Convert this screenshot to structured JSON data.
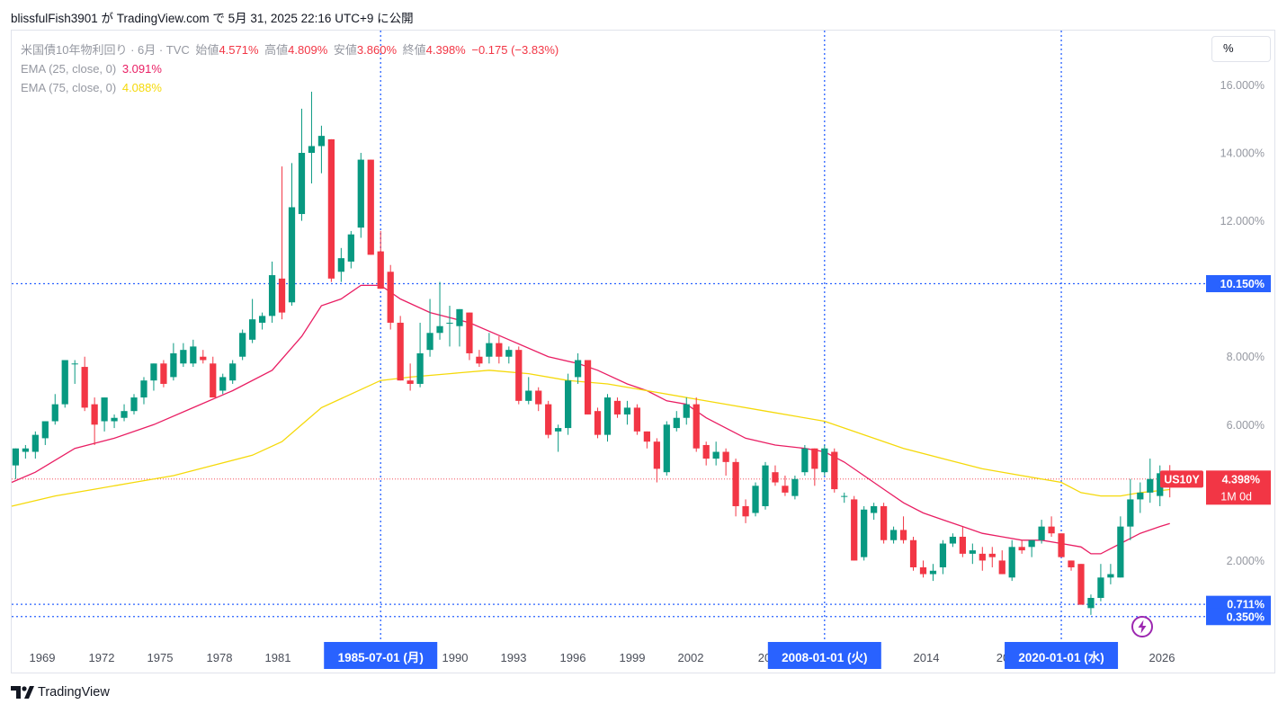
{
  "caption": "blissfulFish3901 が TradingView.com で 5月 31, 2025 22:16 UTC+9 に公開",
  "legend": {
    "symbol": "米国債10年物利回り · 6月 · TVC",
    "open_label": "始値",
    "open": "4.571%",
    "high_label": "高値",
    "high": "4.809%",
    "low_label": "安値",
    "low": "3.860%",
    "close_label": "終値",
    "close": "4.398%",
    "change": "−0.175 (−3.83%)",
    "ema25_label": "EMA (25, close, 0)",
    "ema25_value": "3.091%",
    "ema75_label": "EMA (75, close, 0)",
    "ema75_value": "4.088%"
  },
  "scale_button": "%",
  "brand": "TradingView",
  "colors": {
    "up": "#089981",
    "down": "#f23645",
    "ema25": "#e91e63",
    "ema75": "#f5d90a",
    "marker": "#2962ff"
  },
  "chart_data": {
    "type": "candlestick",
    "y_axis_labels": [
      "16.000%",
      "14.000%",
      "12.000%",
      "8.000%",
      "6.000%",
      "2.000%"
    ],
    "ylim": [
      -0.45,
      17.6
    ],
    "x_axis_labels": [
      "1969",
      "1972",
      "1975",
      "1978",
      "1981",
      "1990",
      "1993",
      "1996",
      "1999",
      "2002",
      "20",
      "11",
      "2014",
      "20",
      "23",
      "2026"
    ],
    "time_range": [
      1966.8,
      2027.2
    ],
    "horizontal_lines": [
      {
        "value": 10.15,
        "label": "10.150%"
      },
      {
        "value": 0.711,
        "label": "0.711%"
      },
      {
        "value": 0.35,
        "label": "0.350%"
      }
    ],
    "vertical_markers": [
      {
        "time": 1985.5,
        "label": "1985-07-01 (月)"
      },
      {
        "time": 2008.0,
        "label": "2008-01-01 (火)"
      },
      {
        "time": 2020.0,
        "label": "2020-01-01 (水)"
      }
    ],
    "current_price": {
      "symbol": "US10Y",
      "value": 4.398,
      "label": "4.398%",
      "interval": "1M 0d"
    },
    "candles": [
      {
        "t": 1967.0,
        "o": 4.8,
        "h": 5.3,
        "l": 4.4,
        "c": 5.3
      },
      {
        "t": 1967.5,
        "o": 5.2,
        "h": 5.4,
        "l": 5.0,
        "c": 5.3
      },
      {
        "t": 1968.0,
        "o": 5.2,
        "h": 5.8,
        "l": 5.0,
        "c": 5.7
      },
      {
        "t": 1968.5,
        "o": 5.6,
        "h": 6.1,
        "l": 5.4,
        "c": 6.1
      },
      {
        "t": 1969.0,
        "o": 6.1,
        "h": 6.9,
        "l": 6.0,
        "c": 6.6
      },
      {
        "t": 1969.5,
        "o": 6.6,
        "h": 7.9,
        "l": 6.5,
        "c": 7.9
      },
      {
        "t": 1970.0,
        "o": 7.8,
        "h": 7.9,
        "l": 7.2,
        "c": 7.8
      },
      {
        "t": 1970.5,
        "o": 7.7,
        "h": 8.0,
        "l": 6.4,
        "c": 6.5
      },
      {
        "t": 1971.0,
        "o": 6.6,
        "h": 6.8,
        "l": 5.4,
        "c": 6.0
      },
      {
        "t": 1971.5,
        "o": 6.1,
        "h": 6.8,
        "l": 5.8,
        "c": 6.8
      },
      {
        "t": 1972.0,
        "o": 6.1,
        "h": 6.3,
        "l": 5.9,
        "c": 6.2
      },
      {
        "t": 1972.5,
        "o": 6.2,
        "h": 6.6,
        "l": 6.1,
        "c": 6.4
      },
      {
        "t": 1973.0,
        "o": 6.4,
        "h": 6.9,
        "l": 6.3,
        "c": 6.8
      },
      {
        "t": 1973.5,
        "o": 6.8,
        "h": 7.4,
        "l": 6.6,
        "c": 7.3
      },
      {
        "t": 1974.0,
        "o": 7.3,
        "h": 7.8,
        "l": 7.0,
        "c": 7.8
      },
      {
        "t": 1974.5,
        "o": 7.8,
        "h": 7.9,
        "l": 7.1,
        "c": 7.2
      },
      {
        "t": 1975.0,
        "o": 7.4,
        "h": 8.4,
        "l": 7.3,
        "c": 8.1
      },
      {
        "t": 1975.5,
        "o": 7.8,
        "h": 8.4,
        "l": 7.7,
        "c": 8.2
      },
      {
        "t": 1976.0,
        "o": 7.8,
        "h": 8.5,
        "l": 7.7,
        "c": 8.3
      },
      {
        "t": 1976.5,
        "o": 8.0,
        "h": 8.2,
        "l": 7.8,
        "c": 7.9
      },
      {
        "t": 1977.0,
        "o": 7.8,
        "h": 8.0,
        "l": 6.8,
        "c": 6.8
      },
      {
        "t": 1977.5,
        "o": 7.0,
        "h": 7.5,
        "l": 6.9,
        "c": 7.4
      },
      {
        "t": 1978.0,
        "o": 7.3,
        "h": 7.9,
        "l": 7.2,
        "c": 7.8
      },
      {
        "t": 1978.5,
        "o": 8.0,
        "h": 8.8,
        "l": 7.9,
        "c": 8.7
      },
      {
        "t": 1979.0,
        "o": 8.5,
        "h": 9.7,
        "l": 8.4,
        "c": 9.1
      },
      {
        "t": 1979.5,
        "o": 9.0,
        "h": 9.3,
        "l": 8.8,
        "c": 9.2
      },
      {
        "t": 1980.0,
        "o": 9.2,
        "h": 10.8,
        "l": 9.0,
        "c": 10.4
      },
      {
        "t": 1980.5,
        "o": 10.3,
        "h": 13.6,
        "l": 9.1,
        "c": 9.3
      },
      {
        "t": 1981.0,
        "o": 9.6,
        "h": 13.7,
        "l": 9.5,
        "c": 12.4
      },
      {
        "t": 1981.5,
        "o": 12.2,
        "h": 15.3,
        "l": 12.0,
        "c": 14.0
      },
      {
        "t": 1982.0,
        "o": 14.0,
        "h": 15.8,
        "l": 13.1,
        "c": 14.2
      },
      {
        "t": 1982.5,
        "o": 14.2,
        "h": 14.8,
        "l": 13.4,
        "c": 14.5
      },
      {
        "t": 1983.0,
        "o": 14.4,
        "h": 14.4,
        "l": 10.2,
        "c": 10.3
      },
      {
        "t": 1983.5,
        "o": 10.5,
        "h": 11.2,
        "l": 10.2,
        "c": 10.9
      },
      {
        "t": 1984.0,
        "o": 10.8,
        "h": 11.7,
        "l": 10.6,
        "c": 11.6
      },
      {
        "t": 1984.5,
        "o": 11.8,
        "h": 14.0,
        "l": 11.5,
        "c": 13.8
      },
      {
        "t": 1985.0,
        "o": 13.8,
        "h": 13.8,
        "l": 11.0,
        "c": 11.0
      },
      {
        "t": 1985.5,
        "o": 11.1,
        "h": 11.7,
        "l": 10.0,
        "c": 10.0
      },
      {
        "t": 1986.0,
        "o": 10.5,
        "h": 10.7,
        "l": 8.8,
        "c": 9.0
      },
      {
        "t": 1986.5,
        "o": 9.0,
        "h": 9.2,
        "l": 7.3,
        "c": 7.3
      },
      {
        "t": 1987.0,
        "o": 7.3,
        "h": 7.8,
        "l": 7.0,
        "c": 7.2
      },
      {
        "t": 1987.5,
        "o": 7.2,
        "h": 9.0,
        "l": 7.1,
        "c": 8.1
      },
      {
        "t": 1988.0,
        "o": 8.2,
        "h": 9.7,
        "l": 8.0,
        "c": 8.7
      },
      {
        "t": 1988.5,
        "o": 8.7,
        "h": 10.2,
        "l": 8.5,
        "c": 8.9
      },
      {
        "t": 1989.0,
        "o": 9.0,
        "h": 9.5,
        "l": 8.3,
        "c": 9.0
      },
      {
        "t": 1989.5,
        "o": 8.9,
        "h": 9.4,
        "l": 8.3,
        "c": 9.4
      },
      {
        "t": 1990.0,
        "o": 9.3,
        "h": 9.3,
        "l": 7.9,
        "c": 8.1
      },
      {
        "t": 1990.5,
        "o": 8.0,
        "h": 8.2,
        "l": 7.7,
        "c": 7.8
      },
      {
        "t": 1991.0,
        "o": 8.0,
        "h": 8.7,
        "l": 7.8,
        "c": 8.4
      },
      {
        "t": 1991.5,
        "o": 8.4,
        "h": 8.6,
        "l": 7.8,
        "c": 8.0
      },
      {
        "t": 1992.0,
        "o": 8.0,
        "h": 8.3,
        "l": 7.8,
        "c": 8.2
      },
      {
        "t": 1992.5,
        "o": 8.2,
        "h": 8.3,
        "l": 6.6,
        "c": 6.7
      },
      {
        "t": 1993.0,
        "o": 6.7,
        "h": 7.4,
        "l": 6.6,
        "c": 7.0
      },
      {
        "t": 1993.5,
        "o": 7.0,
        "h": 7.1,
        "l": 6.4,
        "c": 6.6
      },
      {
        "t": 1994.0,
        "o": 6.6,
        "h": 6.7,
        "l": 5.6,
        "c": 5.7
      },
      {
        "t": 1994.5,
        "o": 5.8,
        "h": 6.0,
        "l": 5.2,
        "c": 5.9
      },
      {
        "t": 1995.0,
        "o": 5.9,
        "h": 7.5,
        "l": 5.7,
        "c": 7.3
      },
      {
        "t": 1995.5,
        "o": 7.4,
        "h": 8.1,
        "l": 7.2,
        "c": 7.9
      },
      {
        "t": 1996.0,
        "o": 7.9,
        "h": 7.9,
        "l": 6.3,
        "c": 6.3
      },
      {
        "t": 1996.5,
        "o": 6.4,
        "h": 6.5,
        "l": 5.6,
        "c": 5.7
      },
      {
        "t": 1997.0,
        "o": 5.7,
        "h": 6.9,
        "l": 5.5,
        "c": 6.8
      },
      {
        "t": 1997.5,
        "o": 6.7,
        "h": 6.8,
        "l": 6.2,
        "c": 6.3
      },
      {
        "t": 1998.0,
        "o": 6.3,
        "h": 6.7,
        "l": 6.0,
        "c": 6.5
      },
      {
        "t": 1998.5,
        "o": 6.5,
        "h": 6.6,
        "l": 5.7,
        "c": 5.8
      },
      {
        "t": 1999.0,
        "o": 5.8,
        "h": 5.8,
        "l": 5.3,
        "c": 5.5
      },
      {
        "t": 1999.5,
        "o": 5.5,
        "h": 5.6,
        "l": 4.3,
        "c": 4.7
      },
      {
        "t": 2000.0,
        "o": 4.6,
        "h": 6.1,
        "l": 4.5,
        "c": 6.0
      },
      {
        "t": 2000.5,
        "o": 5.9,
        "h": 6.4,
        "l": 5.8,
        "c": 6.2
      },
      {
        "t": 2001.0,
        "o": 6.2,
        "h": 6.8,
        "l": 6.0,
        "c": 6.6
      },
      {
        "t": 2001.5,
        "o": 6.6,
        "h": 6.8,
        "l": 5.2,
        "c": 5.3
      },
      {
        "t": 2002.0,
        "o": 5.4,
        "h": 5.5,
        "l": 4.8,
        "c": 5.0
      },
      {
        "t": 2002.5,
        "o": 5.0,
        "h": 5.5,
        "l": 4.8,
        "c": 5.2
      },
      {
        "t": 2003.0,
        "o": 5.2,
        "h": 5.3,
        "l": 4.5,
        "c": 4.9
      },
      {
        "t": 2003.5,
        "o": 4.9,
        "h": 5.0,
        "l": 3.3,
        "c": 3.6
      },
      {
        "t": 2004.0,
        "o": 3.6,
        "h": 3.8,
        "l": 3.1,
        "c": 3.3
      },
      {
        "t": 2004.5,
        "o": 3.4,
        "h": 4.3,
        "l": 3.3,
        "c": 4.2
      },
      {
        "t": 2005.0,
        "o": 3.6,
        "h": 4.9,
        "l": 3.5,
        "c": 4.8
      },
      {
        "t": 2005.5,
        "o": 4.6,
        "h": 4.8,
        "l": 4.2,
        "c": 4.3
      },
      {
        "t": 2006.0,
        "o": 4.2,
        "h": 4.5,
        "l": 3.9,
        "c": 4.0
      },
      {
        "t": 2006.5,
        "o": 3.9,
        "h": 4.5,
        "l": 3.8,
        "c": 4.4
      },
      {
        "t": 2007.0,
        "o": 4.6,
        "h": 5.4,
        "l": 4.5,
        "c": 5.3
      },
      {
        "t": 2007.5,
        "o": 5.3,
        "h": 5.3,
        "l": 4.2,
        "c": 4.7
      },
      {
        "t": 2008.0,
        "o": 4.6,
        "h": 5.4,
        "l": 4.5,
        "c": 5.3
      },
      {
        "t": 2008.5,
        "o": 5.2,
        "h": 5.3,
        "l": 4.0,
        "c": 4.1
      },
      {
        "t": 2009.0,
        "o": 3.9,
        "h": 4.0,
        "l": 3.7,
        "c": 3.9
      },
      {
        "t": 2009.5,
        "o": 3.8,
        "h": 3.9,
        "l": 2.0,
        "c": 2.0
      },
      {
        "t": 2010.0,
        "o": 2.1,
        "h": 3.6,
        "l": 2.0,
        "c": 3.5
      },
      {
        "t": 2010.5,
        "o": 3.4,
        "h": 3.7,
        "l": 3.2,
        "c": 3.6
      },
      {
        "t": 2011.0,
        "o": 3.6,
        "h": 3.7,
        "l": 2.5,
        "c": 2.6
      },
      {
        "t": 2011.5,
        "o": 2.6,
        "h": 3.0,
        "l": 2.5,
        "c": 2.9
      },
      {
        "t": 2012.0,
        "o": 2.9,
        "h": 3.3,
        "l": 2.5,
        "c": 2.6
      },
      {
        "t": 2012.5,
        "o": 2.6,
        "h": 2.7,
        "l": 1.7,
        "c": 1.8
      },
      {
        "t": 2013.0,
        "o": 1.8,
        "h": 2.0,
        "l": 1.5,
        "c": 1.6
      },
      {
        "t": 2013.5,
        "o": 1.6,
        "h": 1.9,
        "l": 1.4,
        "c": 1.7
      },
      {
        "t": 2014.0,
        "o": 1.8,
        "h": 2.6,
        "l": 1.6,
        "c": 2.5
      },
      {
        "t": 2014.5,
        "o": 2.5,
        "h": 2.8,
        "l": 2.4,
        "c": 2.7
      },
      {
        "t": 2015.0,
        "o": 2.7,
        "h": 3.0,
        "l": 2.1,
        "c": 2.2
      },
      {
        "t": 2015.5,
        "o": 2.2,
        "h": 2.5,
        "l": 1.9,
        "c": 2.3
      },
      {
        "t": 2016.0,
        "o": 2.2,
        "h": 2.4,
        "l": 1.7,
        "c": 2.0
      },
      {
        "t": 2016.5,
        "o": 2.2,
        "h": 2.4,
        "l": 1.8,
        "c": 2.1
      },
      {
        "t": 2017.0,
        "o": 2.0,
        "h": 2.3,
        "l": 1.6,
        "c": 1.6
      },
      {
        "t": 2017.5,
        "o": 1.5,
        "h": 2.6,
        "l": 1.4,
        "c": 2.4
      },
      {
        "t": 2018.0,
        "o": 2.4,
        "h": 2.6,
        "l": 2.2,
        "c": 2.3
      },
      {
        "t": 2018.5,
        "o": 2.4,
        "h": 2.6,
        "l": 2.1,
        "c": 2.6
      },
      {
        "t": 2019.0,
        "o": 2.6,
        "h": 3.2,
        "l": 2.5,
        "c": 3.0
      },
      {
        "t": 2019.5,
        "o": 3.0,
        "h": 3.3,
        "l": 2.7,
        "c": 2.8
      },
      {
        "t": 2020.0,
        "o": 2.8,
        "h": 2.8,
        "l": 2.1,
        "c": 2.1
      },
      {
        "t": 2020.5,
        "o": 2.0,
        "h": 2.0,
        "l": 1.7,
        "c": 1.8
      },
      {
        "t": 2021.0,
        "o": 1.9,
        "h": 1.9,
        "l": 0.7,
        "c": 0.7
      },
      {
        "t": 2021.5,
        "o": 0.6,
        "h": 1.0,
        "l": 0.4,
        "c": 0.9
      },
      {
        "t": 2022.0,
        "o": 0.9,
        "h": 1.9,
        "l": 0.8,
        "c": 1.5
      },
      {
        "t": 2022.5,
        "o": 1.5,
        "h": 1.9,
        "l": 1.3,
        "c": 1.6
      },
      {
        "t": 2023.0,
        "o": 1.5,
        "h": 3.3,
        "l": 1.5,
        "c": 3.0
      },
      {
        "t": 2023.5,
        "o": 3.0,
        "h": 4.4,
        "l": 2.6,
        "c": 3.8
      },
      {
        "t": 2024.0,
        "o": 3.8,
        "h": 4.3,
        "l": 3.4,
        "c": 4.0
      },
      {
        "t": 2024.5,
        "o": 4.0,
        "h": 5.0,
        "l": 3.7,
        "c": 4.4
      },
      {
        "t": 2025.0,
        "o": 3.9,
        "h": 4.8,
        "l": 3.6,
        "c": 4.57
      },
      {
        "t": 2025.5,
        "o": 4.571,
        "h": 4.809,
        "l": 3.86,
        "c": 4.398
      }
    ],
    "ema_lines": [
      {
        "name": "EMA (25, close, 0)",
        "color": "#e91e63",
        "points": [
          [
            1966.8,
            4.3
          ],
          [
            1968,
            4.6
          ],
          [
            1970,
            5.3
          ],
          [
            1972,
            5.6
          ],
          [
            1974,
            6.0
          ],
          [
            1976,
            6.5
          ],
          [
            1978,
            7.0
          ],
          [
            1980,
            7.6
          ],
          [
            1981.5,
            8.6
          ],
          [
            1982.5,
            9.5
          ],
          [
            1983.5,
            9.7
          ],
          [
            1984.5,
            10.1
          ],
          [
            1985.5,
            10.1
          ],
          [
            1986.5,
            9.7
          ],
          [
            1988,
            9.3
          ],
          [
            1990,
            9.0
          ],
          [
            1992,
            8.5
          ],
          [
            1994,
            8.0
          ],
          [
            1995.5,
            7.8
          ],
          [
            1996.5,
            7.6
          ],
          [
            1998,
            7.2
          ],
          [
            1999,
            7.0
          ],
          [
            2000,
            6.7
          ],
          [
            2001,
            6.6
          ],
          [
            2002,
            6.2
          ],
          [
            2003,
            5.9
          ],
          [
            2004,
            5.6
          ],
          [
            2005.5,
            5.4
          ],
          [
            2007,
            5.3
          ],
          [
            2008,
            5.2
          ],
          [
            2009,
            4.9
          ],
          [
            2010,
            4.5
          ],
          [
            2011,
            4.1
          ],
          [
            2012,
            3.7
          ],
          [
            2013,
            3.4
          ],
          [
            2014,
            3.2
          ],
          [
            2015,
            3.0
          ],
          [
            2016,
            2.8
          ],
          [
            2017,
            2.7
          ],
          [
            2018,
            2.6
          ],
          [
            2019,
            2.6
          ],
          [
            2020,
            2.5
          ],
          [
            2021,
            2.4
          ],
          [
            2021.5,
            2.2
          ],
          [
            2022,
            2.2
          ],
          [
            2023,
            2.5
          ],
          [
            2024,
            2.8
          ],
          [
            2025,
            3.0
          ],
          [
            2025.5,
            3.09
          ]
        ]
      },
      {
        "name": "EMA (75, close, 0)",
        "color": "#f5d90a",
        "points": [
          [
            1966.8,
            3.6
          ],
          [
            1969,
            3.9
          ],
          [
            1971,
            4.1
          ],
          [
            1973,
            4.3
          ],
          [
            1975,
            4.5
          ],
          [
            1977,
            4.8
          ],
          [
            1979,
            5.1
          ],
          [
            1980.5,
            5.5
          ],
          [
            1981.5,
            6.0
          ],
          [
            1982.5,
            6.5
          ],
          [
            1984,
            6.9
          ],
          [
            1985.5,
            7.3
          ],
          [
            1987,
            7.4
          ],
          [
            1989,
            7.5
          ],
          [
            1991,
            7.6
          ],
          [
            1993,
            7.5
          ],
          [
            1995,
            7.3
          ],
          [
            1997,
            7.2
          ],
          [
            1999,
            7.0
          ],
          [
            2001,
            6.8
          ],
          [
            2003,
            6.6
          ],
          [
            2005,
            6.4
          ],
          [
            2008,
            6.1
          ],
          [
            2010,
            5.7
          ],
          [
            2012,
            5.3
          ],
          [
            2014,
            5.0
          ],
          [
            2016,
            4.7
          ],
          [
            2018,
            4.5
          ],
          [
            2020,
            4.3
          ],
          [
            2021,
            4.0
          ],
          [
            2022,
            3.9
          ],
          [
            2023,
            3.9
          ],
          [
            2024,
            4.0
          ],
          [
            2025.5,
            4.09
          ]
        ]
      }
    ]
  }
}
